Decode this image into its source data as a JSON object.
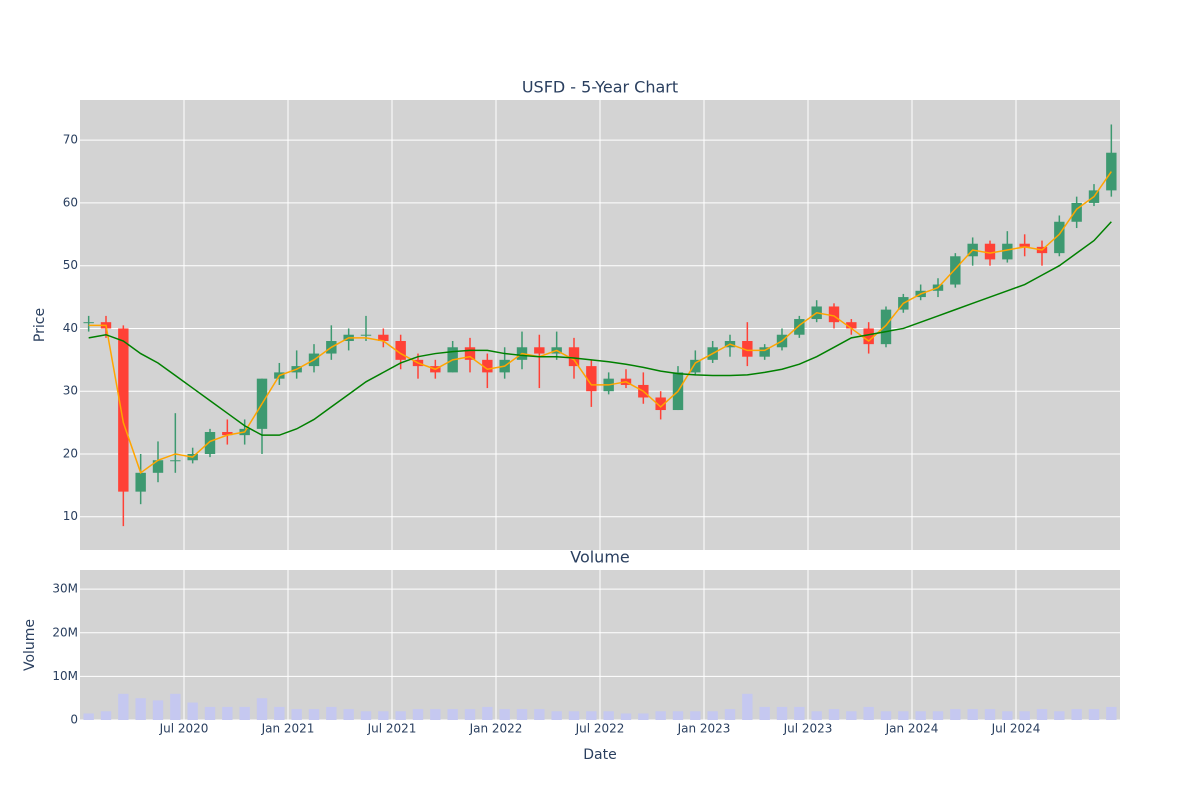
{
  "chart_data": [
    {
      "type": "candlestick",
      "title": "USFD - 5-Year Chart",
      "ylabel": "Price",
      "x": [
        "2020-01",
        "2020-02",
        "2020-03",
        "2020-04",
        "2020-05",
        "2020-06",
        "2020-07",
        "2020-08",
        "2020-09",
        "2020-10",
        "2020-11",
        "2020-12",
        "2021-01",
        "2021-02",
        "2021-03",
        "2021-04",
        "2021-05",
        "2021-06",
        "2021-07",
        "2021-08",
        "2021-09",
        "2021-10",
        "2021-11",
        "2021-12",
        "2022-01",
        "2022-02",
        "2022-03",
        "2022-04",
        "2022-05",
        "2022-06",
        "2022-07",
        "2022-08",
        "2022-09",
        "2022-10",
        "2022-11",
        "2022-12",
        "2023-01",
        "2023-02",
        "2023-03",
        "2023-04",
        "2023-05",
        "2023-06",
        "2023-07",
        "2023-08",
        "2023-09",
        "2023-10",
        "2023-11",
        "2023-12",
        "2024-01",
        "2024-02",
        "2024-03",
        "2024-04",
        "2024-05",
        "2024-06",
        "2024-07",
        "2024-08",
        "2024-09",
        "2024-10",
        "2024-11",
        "2024-12"
      ],
      "open": [
        41,
        41,
        40,
        14,
        17,
        19,
        19,
        20,
        23.5,
        23,
        24,
        32,
        33,
        34,
        36,
        38,
        39,
        39,
        38,
        35,
        34,
        33,
        37,
        35,
        33,
        35,
        37,
        36,
        37,
        34,
        30,
        32,
        31,
        29,
        27,
        33,
        35,
        37,
        38,
        35.5,
        37,
        39,
        41.5,
        43.5,
        41,
        40,
        37.5,
        43,
        45,
        46,
        47,
        51.5,
        53.5,
        51,
        53.5,
        53,
        52,
        57,
        60,
        62
      ],
      "high": [
        42,
        42,
        40.5,
        20,
        22,
        26.5,
        21,
        24,
        25.5,
        25.5,
        32,
        34.5,
        36.5,
        37.5,
        40.5,
        40,
        42,
        40,
        39,
        36,
        35,
        38,
        38.5,
        36,
        37,
        39.5,
        39,
        39.5,
        38.5,
        35,
        33,
        33.5,
        33,
        30,
        34,
        36.5,
        38,
        39,
        41,
        37.5,
        40,
        42,
        44.5,
        44,
        41.5,
        41,
        43.5,
        45.5,
        47,
        48,
        52,
        54.5,
        54,
        55.5,
        55,
        54,
        58,
        61,
        63,
        72.5
      ],
      "low": [
        39.5,
        38.5,
        8.5,
        12,
        15.5,
        17,
        18.5,
        19.5,
        21.5,
        21.5,
        20,
        31,
        32,
        33,
        35,
        36.5,
        38,
        37,
        33.5,
        32,
        32,
        33,
        33,
        30.5,
        32,
        33.5,
        30.5,
        35,
        32,
        27.5,
        29.5,
        30.5,
        28,
        25.5,
        27,
        32.5,
        34.5,
        35.5,
        34,
        35,
        36.5,
        38.5,
        41,
        40,
        39,
        36,
        37,
        42.5,
        44.5,
        45,
        46.5,
        50,
        50,
        50.5,
        51.5,
        50,
        51.5,
        56,
        59.5,
        61
      ],
      "close": [
        41,
        40,
        14,
        17,
        19,
        19,
        20,
        23.5,
        23,
        24,
        32,
        33,
        34,
        36,
        38,
        39,
        39,
        38,
        35,
        34,
        33,
        37,
        35,
        33,
        35,
        37,
        36,
        37,
        34,
        30,
        32,
        31,
        29,
        27,
        33,
        35,
        37,
        38,
        35.5,
        37,
        39,
        41.5,
        43.5,
        41,
        40,
        37.5,
        43,
        45,
        46,
        47,
        51.5,
        53.5,
        51,
        53.5,
        53,
        52,
        57,
        60,
        62,
        68
      ],
      "increasing_color": "#3d9970",
      "decreasing_color": "#ff4136",
      "lines": [
        {
          "color": "#ffa500",
          "values": [
            40.5,
            40.5,
            25,
            17,
            19,
            20,
            19.5,
            22,
            23,
            23.5,
            28,
            32.5,
            33.5,
            35,
            37,
            38.5,
            38.5,
            38,
            36,
            34.5,
            33.5,
            35,
            35.5,
            33.5,
            34,
            36,
            35.5,
            36.5,
            35,
            31,
            31,
            31.5,
            30,
            27.5,
            30,
            34.5,
            36,
            37.5,
            36.5,
            36.5,
            38,
            40.5,
            42.5,
            42,
            40,
            38,
            40.5,
            44,
            45.5,
            46.5,
            49.5,
            52.5,
            52,
            52.5,
            53,
            52.5,
            55,
            59,
            61,
            65
          ]
        },
        {
          "color": "#008000",
          "values": [
            38.5,
            39,
            38,
            36,
            34.5,
            32.5,
            30.5,
            28.5,
            26.5,
            24.5,
            23,
            23,
            24,
            25.5,
            27.5,
            29.5,
            31.5,
            33,
            34.5,
            35.5,
            36,
            36.3,
            36.5,
            36.5,
            36,
            35.7,
            35.5,
            35.5,
            35.3,
            35,
            34.7,
            34.3,
            33.8,
            33.2,
            32.8,
            32.6,
            32.5,
            32.5,
            32.6,
            33,
            33.5,
            34.3,
            35.5,
            37,
            38.5,
            39,
            39.5,
            40,
            41,
            42,
            43,
            44,
            45,
            46,
            47,
            48.5,
            50,
            52,
            54,
            57
          ]
        }
      ],
      "xlim": [
        "2020-01",
        "2025-01"
      ],
      "ylim": [
        4.7,
        76.4
      ],
      "yticks": [
        10,
        20,
        30,
        40,
        50,
        60,
        70
      ],
      "grid": true,
      "background": "#d3d3d3"
    },
    {
      "type": "bar",
      "title": "Volume",
      "ylabel": "Volume",
      "xlabel": "Date",
      "values": [
        1500000,
        2000000,
        6000000,
        5000000,
        4500000,
        6000000,
        4000000,
        3000000,
        3000000,
        3000000,
        5000000,
        3000000,
        2500000,
        2500000,
        3000000,
        2500000,
        2000000,
        2000000,
        2000000,
        2500000,
        2500000,
        2500000,
        2500000,
        3000000,
        2500000,
        2500000,
        2500000,
        2000000,
        2000000,
        2000000,
        2000000,
        1500000,
        1500000,
        2000000,
        2000000,
        2000000,
        2000000,
        2500000,
        6000000,
        3000000,
        3000000,
        3000000,
        2000000,
        2500000,
        2000000,
        3000000,
        2000000,
        2000000,
        2000000,
        2000000,
        2500000,
        2500000,
        2500000,
        2000000,
        2000000,
        2500000,
        2000000,
        2500000,
        2500000,
        3000000
      ],
      "color": "#c5c8f0",
      "xticks": [
        {
          "value": "2020-07",
          "label": "Jul 2020"
        },
        {
          "value": "2021-01",
          "label": "Jan 2021"
        },
        {
          "value": "2021-07",
          "label": "Jul 2021"
        },
        {
          "value": "2022-01",
          "label": "Jan 2022"
        },
        {
          "value": "2022-07",
          "label": "Jul 2022"
        },
        {
          "value": "2023-01",
          "label": "Jan 2023"
        },
        {
          "value": "2023-07",
          "label": "Jul 2023"
        },
        {
          "value": "2024-01",
          "label": "Jan 2024"
        },
        {
          "value": "2024-07",
          "label": "Jul 2024"
        }
      ],
      "ylim": [
        0,
        34400000
      ],
      "yticks": [
        0,
        {
          "value": 10000000,
          "label": "10M"
        },
        {
          "value": 20000000,
          "label": "20M"
        },
        {
          "value": 30000000,
          "label": "30M"
        }
      ],
      "grid": true,
      "background": "#d3d3d3"
    }
  ]
}
